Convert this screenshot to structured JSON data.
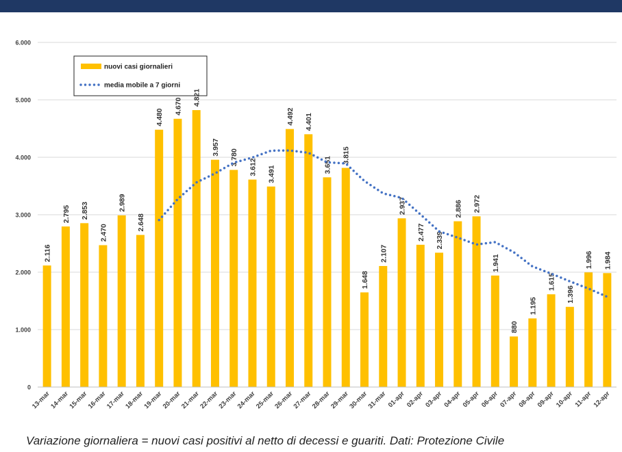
{
  "chart_data": {
    "type": "bar",
    "categories": [
      "13-mar",
      "14-mar",
      "15-mar",
      "16-mar",
      "17-mar",
      "18-mar",
      "19-mar",
      "20-mar",
      "21-mar",
      "22-mar",
      "23-mar",
      "24-mar",
      "25-mar",
      "26-mar",
      "27-mar",
      "28-mar",
      "29-mar",
      "30-mar",
      "31-mar",
      "01-apr",
      "02-apr",
      "03-apr",
      "04-apr",
      "05-apr",
      "06-apr",
      "07-apr",
      "08-apr",
      "09-apr",
      "10-apr",
      "11-apr",
      "12-apr"
    ],
    "series": [
      {
        "name": "nuovi casi giornalieri",
        "color": "#ffc000",
        "values": [
          2116,
          2795,
          2853,
          2470,
          2989,
          2648,
          4480,
          4670,
          4821,
          3957,
          3780,
          3612,
          3491,
          4492,
          4401,
          3651,
          3815,
          1648,
          2107,
          2937,
          2477,
          2339,
          2886,
          2972,
          1941,
          880,
          1195,
          1615,
          1396,
          1996,
          1984
        ],
        "value_labels": [
          "2.116",
          "2.795",
          "2.853",
          "2.470",
          "2.989",
          "2.648",
          "4.480",
          "4.670",
          "4.821",
          "3.957",
          "3.780",
          "3.612",
          "3.491",
          "4.492",
          "4.401",
          "3.651",
          "3.815",
          "1.648",
          "2.107",
          "2.937",
          "2.477",
          "2.339",
          "2.886",
          "2.972",
          "1.941",
          "880",
          "1.195",
          "1.615",
          "1.396",
          "1.996",
          "1.984"
        ]
      },
      {
        "name": "media mobile a 7 giorni",
        "color": "#4472c4",
        "type": "line",
        "values": [
          null,
          null,
          null,
          null,
          null,
          null,
          2907,
          3272,
          3562,
          3719,
          3906,
          3995,
          4116,
          4118,
          4079,
          3912,
          3892,
          3587,
          3372,
          3293,
          3005,
          2711,
          2601,
          2481,
          2523,
          2347,
          2099,
          1975,
          1841,
          1714,
          1572
        ]
      }
    ],
    "ylim": [
      0,
      6000
    ],
    "yticks": [
      {
        "value": 0,
        "label": "0"
      },
      {
        "value": 1000,
        "label": "1.000"
      },
      {
        "value": 2000,
        "label": "2.000"
      },
      {
        "value": 3000,
        "label": "3.000"
      },
      {
        "value": 4000,
        "label": "4.000"
      },
      {
        "value": 5000,
        "label": "5.000"
      },
      {
        "value": 6000,
        "label": "6.000"
      }
    ],
    "grid": true,
    "caption": "Variazione giornaliera = nuovi casi positivi al netto di decessi e guariti. Dati: Protezione Civile"
  }
}
